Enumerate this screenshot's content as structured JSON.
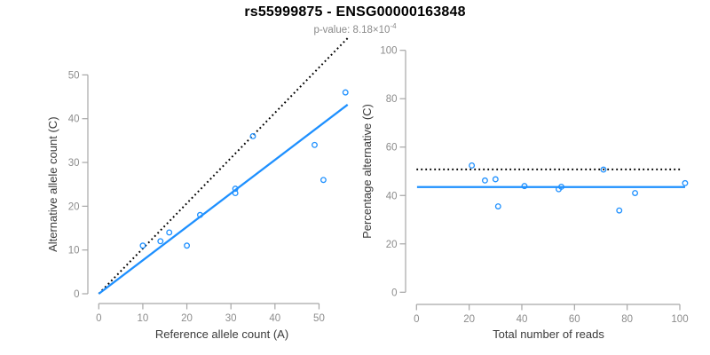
{
  "header": {
    "title": "rs55999875 - ENSG00000163848",
    "subtitle_base": "p-value: 8.18×10",
    "subtitle_exponent": "-4"
  },
  "colors": {
    "accent_blue": "#1E90FF",
    "dotted_black": "#000000",
    "axis_gray": "#A6A6A6",
    "tick_label_gray": "#8C8C8C",
    "axis_title_dark": "#3a3a3a",
    "title_black": "#000000",
    "subtitle_gray": "#8a8a8a"
  },
  "chart_data": [
    {
      "type": "scatter",
      "panel": "allele-counts",
      "xlabel": "Reference allele count (A)",
      "ylabel": "Alternative allele count (C)",
      "xticks": [
        0,
        10,
        20,
        30,
        40,
        50
      ],
      "yticks": [
        0,
        10,
        20,
        30,
        40,
        50
      ],
      "xlim": [
        0,
        56.5
      ],
      "ylim": [
        0,
        57
      ],
      "grid": false,
      "point_style": "open-circle",
      "point_color": "#1E90FF",
      "points": [
        {
          "x": 10,
          "y": 11
        },
        {
          "x": 14,
          "y": 12
        },
        {
          "x": 16,
          "y": 14
        },
        {
          "x": 20,
          "y": 11
        },
        {
          "x": 23,
          "y": 18
        },
        {
          "x": 31,
          "y": 23
        },
        {
          "x": 31,
          "y": 24
        },
        {
          "x": 35,
          "y": 36
        },
        {
          "x": 49,
          "y": 34
        },
        {
          "x": 51,
          "y": 26
        },
        {
          "x": 56,
          "y": 46
        }
      ],
      "lines": [
        {
          "name": "expected-ratio-line",
          "style": "dotted",
          "color": "#000000",
          "x1": 0,
          "y1": 0,
          "x2": 56.5,
          "y2": 58.4
        },
        {
          "name": "fitted-ratio-line",
          "style": "solid",
          "color": "#1E90FF",
          "x1": 0,
          "y1": 0,
          "x2": 56.5,
          "y2": 43.2
        }
      ]
    },
    {
      "type": "scatter",
      "panel": "percentage-vs-reads",
      "xlabel": "Total number of reads",
      "ylabel": "Percentage alternative (C)",
      "xticks": [
        0,
        20,
        40,
        60,
        80,
        100
      ],
      "yticks": [
        0,
        20,
        40,
        60,
        80,
        100
      ],
      "xlim": [
        0,
        104
      ],
      "ylim": [
        0,
        100
      ],
      "grid": false,
      "point_style": "open-circle",
      "point_color": "#1E90FF",
      "points": [
        {
          "x": 21,
          "y": 52.4
        },
        {
          "x": 26,
          "y": 46.2
        },
        {
          "x": 30,
          "y": 46.7
        },
        {
          "x": 31,
          "y": 35.5
        },
        {
          "x": 41,
          "y": 43.9
        },
        {
          "x": 54,
          "y": 42.6
        },
        {
          "x": 55,
          "y": 43.6
        },
        {
          "x": 71,
          "y": 50.7
        },
        {
          "x": 77,
          "y": 33.8
        },
        {
          "x": 83,
          "y": 41.0
        },
        {
          "x": 102,
          "y": 45.1
        }
      ],
      "lines": [
        {
          "name": "expected-percentage-line",
          "style": "dotted",
          "color": "#000000",
          "x1": 0,
          "y1": 50.8,
          "x2": 101,
          "y2": 50.8
        },
        {
          "name": "mean-percentage-line",
          "style": "solid",
          "color": "#1E90FF",
          "x1": 0.2,
          "y1": 43.5,
          "x2": 102,
          "y2": 43.5
        }
      ]
    }
  ]
}
